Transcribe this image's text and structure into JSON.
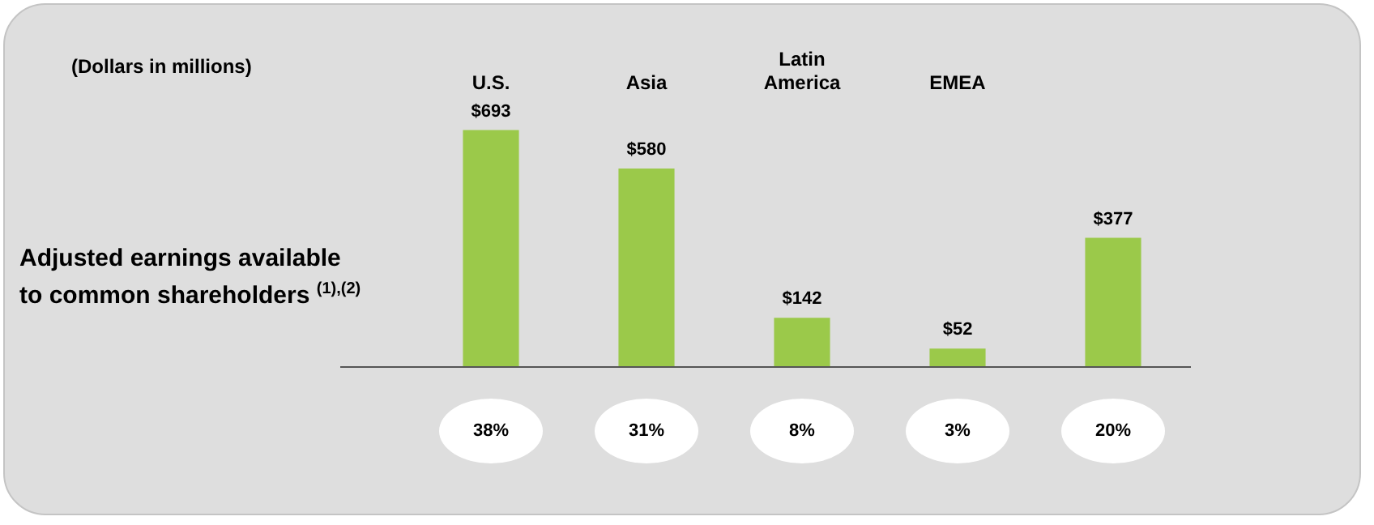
{
  "chart_data": {
    "type": "bar",
    "subtitle": "(Dollars in millions)",
    "ylabel": "Adjusted earnings available to common shareholders $^{(1),(2)}$",
    "categories": [
      "U.S.",
      "Asia",
      "Latin America",
      "EMEA",
      null
    ],
    "values": [
      693,
      580,
      142,
      52,
      377
    ],
    "value_labels": [
      "$693",
      "$580",
      "$142",
      "$52",
      "$377"
    ],
    "color": "#9bc94a",
    "annotations": [
      "38%",
      "31%",
      "8%",
      "3%",
      "20%"
    ],
    "grid": false,
    "legend": false
  }
}
